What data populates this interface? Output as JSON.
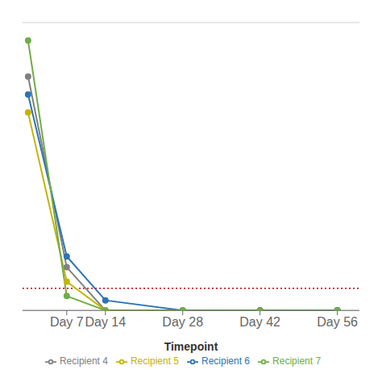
{
  "chart_data": {
    "type": "line",
    "xlabel": "Timepoint",
    "xlim": [
      -1,
      60
    ],
    "xticks": [
      {
        "value": 7,
        "label": "Day 7"
      },
      {
        "value": 14,
        "label": "Day 14"
      },
      {
        "value": 28,
        "label": "Day 28"
      },
      {
        "value": 42,
        "label": "Day 42"
      },
      {
        "value": 56,
        "label": "Day 56"
      }
    ],
    "ylim": [
      0,
      8000000
    ],
    "yticks": [
      0,
      1333333.3333333333,
      2666666.6666666665,
      4000000,
      5333333.333333333,
      6666666.666666667,
      8000000
    ],
    "tick_labels": "x",
    "grid": true,
    "legend": "bottom",
    "marker": "o",
    "x": [
      0,
      7,
      14,
      28,
      42,
      56
    ],
    "series": [
      {
        "name": "Recipient 4",
        "color": "#808080",
        "values": [
          6500000,
          1200000,
          50,
          50,
          50,
          50
        ]
      },
      {
        "name": "Recipient 5",
        "color": "#c4b400",
        "values": [
          5500000,
          800000,
          50,
          50,
          50,
          50
        ]
      },
      {
        "name": "Recipient 6",
        "color": "#2e74b5",
        "values": [
          6000000,
          1500000,
          280000,
          50,
          50,
          1500
        ]
      },
      {
        "name": "Recipient 7",
        "color": "#70ad47",
        "values": [
          7500000,
          400000,
          50,
          50,
          50,
          50
        ]
      }
    ],
    "hlines": [
      {
        "value": 615000,
        "color": "#c00000",
        "line_style": "dotted"
      }
    ]
  }
}
